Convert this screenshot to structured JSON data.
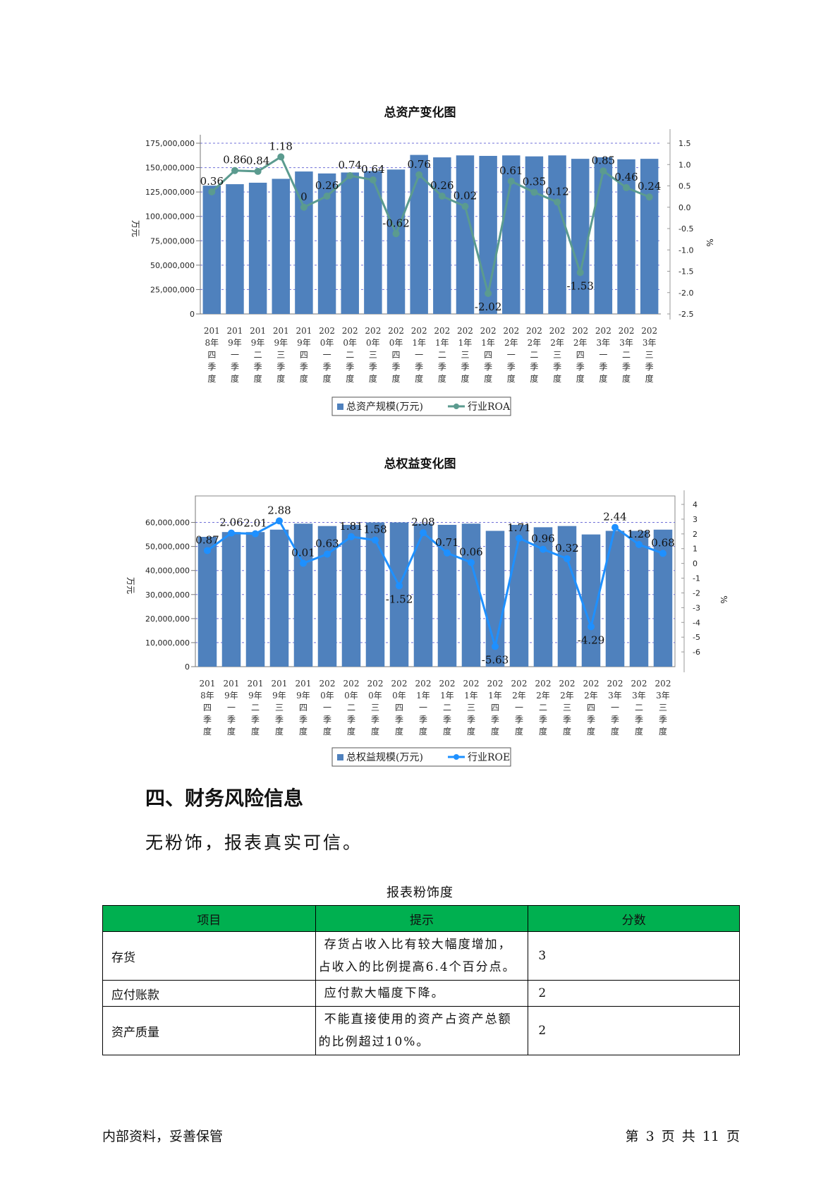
{
  "chart_data": [
    {
      "type": "bar",
      "title": "总资产变化图",
      "categories": [
        "2018年四季度",
        "2019年一季度",
        "2019年二季度",
        "2019年三季度",
        "2019年四季度",
        "2020年一季度",
        "2020年二季度",
        "2020年三季度",
        "2020年四季度",
        "2021年一季度",
        "2021年二季度",
        "2021年三季度",
        "2021年四季度",
        "2022年一季度",
        "2022年二季度",
        "2022年三季度",
        "2022年四季度",
        "2023年一季度",
        "2023年二季度",
        "2023年三季度"
      ],
      "ylabel": "万元",
      "y2label": "%",
      "ylim": [
        0,
        175000000
      ],
      "y2lim": [
        -2.5,
        1.5
      ],
      "yticks": [
        "0",
        "25,000,000",
        "50,000,000",
        "75,000,000",
        "100,000,000",
        "125,000,000",
        "150,000,000",
        "175,000,000"
      ],
      "y2ticks": [
        "-2.5",
        "-2.0",
        "-1.5",
        "-1.0",
        "-0.5",
        "0.0",
        "0.5",
        "1.0",
        "1.5"
      ],
      "grid": true,
      "legend_position": "bottom",
      "series": [
        {
          "name": "总资产规模(万元)",
          "kind": "bar",
          "axis": "left",
          "color": "#4f81bd",
          "values": [
            131500000,
            133000000,
            134500000,
            138500000,
            146000000,
            144000000,
            145000000,
            146500000,
            148000000,
            163000000,
            160500000,
            162500000,
            162000000,
            162500000,
            161500000,
            162500000,
            159000000,
            160500000,
            158500000,
            159000000
          ]
        },
        {
          "name": "行业ROA",
          "kind": "line",
          "axis": "right",
          "color": "#5b9b8f",
          "values": [
            0.36,
            0.86,
            0.84,
            1.18,
            0,
            0.26,
            0.74,
            0.64,
            -0.62,
            0.76,
            0.26,
            0.02,
            -2.02,
            0.61,
            0.35,
            0.12,
            -1.53,
            0.85,
            0.46,
            0.24
          ],
          "labels": [
            "0.36",
            "0.86",
            "0.84",
            "1.18",
            "0",
            "0.26",
            "0.74",
            "0.64",
            "-0.62",
            "0.76",
            "0.26",
            "0.02",
            "-2.02",
            "0.61",
            "0.35",
            "0.12",
            "-1.53",
            "0.85",
            "0.46",
            "0.24"
          ]
        }
      ]
    },
    {
      "type": "bar",
      "title": "总权益变化图",
      "categories": [
        "2018年四季度",
        "2019年一季度",
        "2019年二季度",
        "2019年三季度",
        "2019年四季度",
        "2020年一季度",
        "2020年二季度",
        "2020年三季度",
        "2020年四季度",
        "2021年一季度",
        "2021年二季度",
        "2021年三季度",
        "2021年四季度",
        "2022年一季度",
        "2022年二季度",
        "2022年三季度",
        "2022年四季度",
        "2023年一季度",
        "2023年二季度",
        "2023年三季度"
      ],
      "ylabel": "万元",
      "y2label": "%",
      "ylim": [
        0,
        67500000
      ],
      "y2lim": [
        -7,
        4
      ],
      "yticks": [
        "0",
        "10,000,000",
        "20,000,000",
        "30,000,000",
        "40,000,000",
        "50,000,000",
        "60,000,000"
      ],
      "y2ticks": [
        "-6",
        "-5",
        "-4",
        "-3",
        "-2",
        "-1",
        "0",
        "1",
        "2",
        "3",
        "4"
      ],
      "grid": true,
      "legend_position": "bottom",
      "series": [
        {
          "name": "总权益规模(万元)",
          "kind": "bar",
          "axis": "left",
          "color": "#4f81bd",
          "values": [
            54000000,
            56000000,
            56000000,
            57000000,
            59500000,
            58500000,
            59000000,
            60000000,
            60000000,
            59500000,
            59000000,
            59500000,
            56500000,
            59000000,
            58000000,
            58500000,
            55000000,
            56500000,
            56500000,
            57000000
          ]
        },
        {
          "name": "行业ROE",
          "kind": "line",
          "axis": "right",
          "color": "#1e90ff",
          "values": [
            0.87,
            2.06,
            2.01,
            2.88,
            0.01,
            0.63,
            1.81,
            1.58,
            -1.52,
            2.08,
            0.71,
            0.06,
            -5.63,
            1.71,
            0.96,
            0.32,
            -4.29,
            2.44,
            1.28,
            0.68
          ],
          "labels": [
            "0.87",
            "2.06",
            "2.01",
            "2.88",
            "0.01",
            "0.63",
            "1.81",
            "1.58",
            "-1.52",
            "2.08",
            "0.71",
            "0.06",
            "-5.63",
            "1.71",
            "0.96",
            "0.32",
            "-4.29",
            "2.44",
            "1.28",
            "0.68"
          ]
        }
      ]
    }
  ],
  "section": {
    "heading": "四、财务风险信息",
    "text": "无粉饰，报表真实可信。"
  },
  "table": {
    "caption": "报表粉饰度",
    "headers": [
      "项目",
      "提示",
      "分数"
    ],
    "header_color": "#00b050",
    "rows": [
      {
        "item": "存货",
        "hint": "存货占收入比有较大幅度增加，占收入的比例提高6.4个百分点。",
        "score": "3"
      },
      {
        "item": "应付账款",
        "hint": "应付款大幅度下降。",
        "score": "2"
      },
      {
        "item": "资产质量",
        "hint": "不能直接使用的资产占资产总额的比例超过10%。",
        "score": "2"
      }
    ]
  },
  "footer": {
    "left": "内部资料，妥善保管",
    "right": "第 3 页   共 11 页"
  }
}
